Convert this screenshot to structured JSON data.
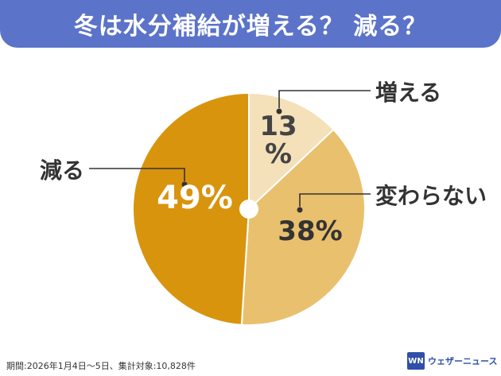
{
  "header": {
    "title": "冬は水分補給が増える？ 減る？"
  },
  "chart_data": {
    "type": "pie",
    "title": "冬は水分補給が増える？ 減る？",
    "slices": [
      {
        "label": "増える",
        "value": 13,
        "value_label_lines": [
          "13",
          "%"
        ],
        "color": "#f4e1b9"
      },
      {
        "label": "変わらない",
        "value": 38,
        "value_label_lines": [
          "38%"
        ],
        "color": "#e9c06e"
      },
      {
        "label": "減る",
        "value": 49,
        "value_label_lines": [
          "49%"
        ],
        "color": "#d9940e"
      }
    ],
    "start": "top",
    "direction": "clockwise",
    "legend": "none"
  },
  "footer": {
    "note": "期間:2026年1月4日〜5日、集計対象:10,828件"
  },
  "brand": {
    "logo_text": "WN",
    "name": "ウェザーニュース",
    "color": "#2f4fa8"
  }
}
